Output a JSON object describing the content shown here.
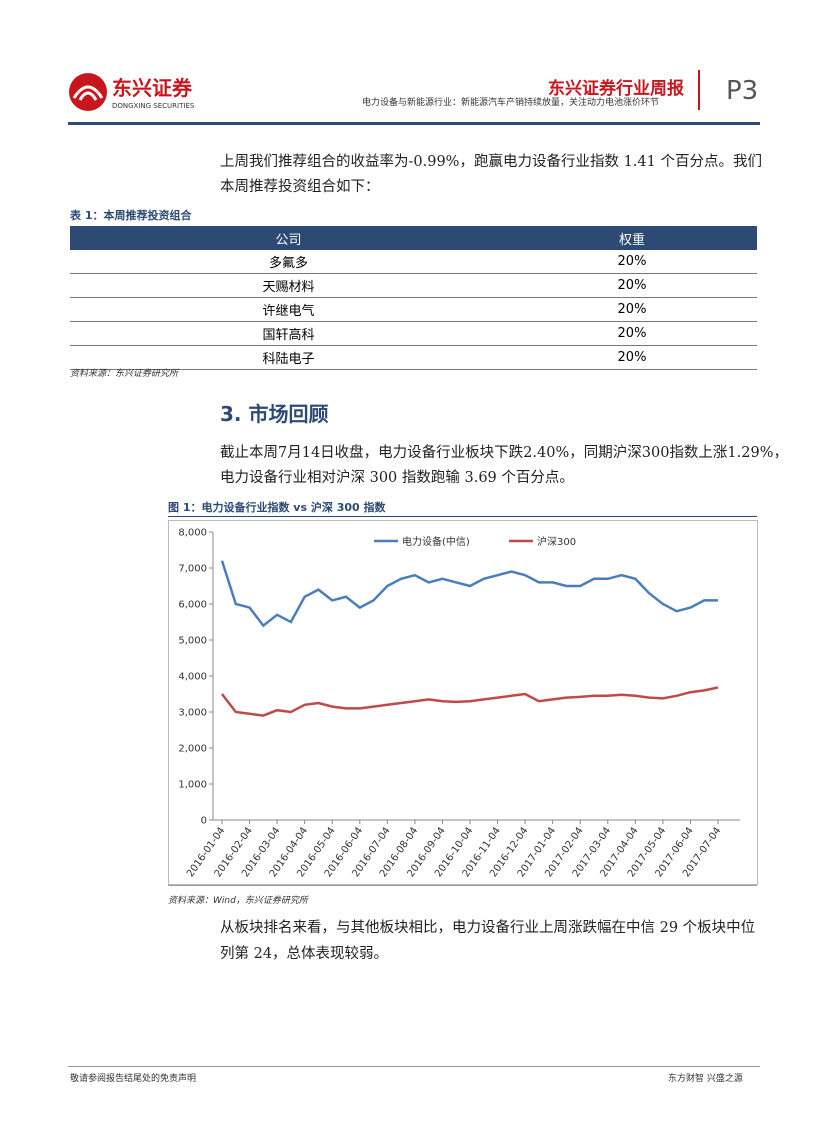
{
  "header": {
    "logo_cn": "东兴证券",
    "logo_en": "DONGXING SECURITIES",
    "title": "东兴证券行业周报",
    "subtitle": "电力设备与新能源行业：新能源汽车产销持续放量，关注动力电池涨价环节",
    "page": "P3"
  },
  "intro": [
    "上周我们推荐组合的收益率为-0.99%，跑赢电力设备行业指数 1.41 个百分点。我们",
    "本周推荐投资组合如下："
  ],
  "table": {
    "caption": "表 1：本周推荐投资组合",
    "header": [
      "公司",
      "权重"
    ],
    "rows": [
      [
        "多氟多",
        "20%"
      ],
      [
        "天赐材料",
        "20%"
      ],
      [
        "许继电气",
        "20%"
      ],
      [
        "国轩高科",
        "20%"
      ],
      [
        "科陆电子",
        "20%"
      ]
    ],
    "source": "资料来源：东兴证券研究所"
  },
  "section_title": "3. 市场回顾",
  "section_text": [
    "截止本周7月14日收盘，电力设备行业板块下跌2.40%，同期沪深300指数上涨1.29%，",
    "电力设备行业相对沪深 300 指数跑输 3.69 个百分点。"
  ],
  "figure_caption": "图 1：电力设备行业指数 vs 沪深 300 指数",
  "chart_data": {
    "type": "line",
    "categories": [
      "2016-01-04",
      null,
      "2016-02-04",
      null,
      "2016-03-04",
      null,
      "2016-04-04",
      null,
      "2016-05-04",
      null,
      "2016-06-04",
      null,
      "2016-07-04",
      null,
      "2016-08-04",
      null,
      "2016-09-04",
      null,
      "2016-10-04",
      null,
      "2016-11-04",
      null,
      "2016-12-04",
      null,
      "2017-01-04",
      null,
      "2017-02-04",
      null,
      "2017-03-04",
      null,
      "2017-04-04",
      null,
      "2017-05-04",
      null,
      "2017-06-04",
      null,
      "2017-07-04"
    ],
    "series": [
      {
        "name": "电力设备(中信)",
        "color": "#4a7ebb",
        "values": [
          7200,
          6000,
          5900,
          5400,
          5700,
          5500,
          6200,
          6400,
          6100,
          6200,
          5900,
          6100,
          6500,
          6700,
          6800,
          6600,
          6700,
          6600,
          6500,
          6700,
          6800,
          6900,
          6800,
          6600,
          6600,
          6500,
          6500,
          6700,
          6700,
          6800,
          6700,
          6300,
          6000,
          5800,
          5900,
          6100,
          6100
        ]
      },
      {
        "name": "沪深300",
        "color": "#be4b48",
        "values": [
          3500,
          3000,
          2950,
          2900,
          3050,
          3000,
          3200,
          3250,
          3150,
          3100,
          3100,
          3150,
          3200,
          3250,
          3300,
          3350,
          3300,
          3280,
          3300,
          3350,
          3400,
          3450,
          3500,
          3300,
          3350,
          3400,
          3420,
          3450,
          3450,
          3480,
          3450,
          3400,
          3380,
          3450,
          3550,
          3600,
          3680
        ]
      }
    ],
    "ylim": [
      0,
      8000
    ],
    "yticks": [
      0,
      {
        "value": 1000,
        "label": "1,000"
      },
      {
        "value": 2000,
        "label": "2,000"
      },
      {
        "value": 3000,
        "label": "3,000"
      },
      {
        "value": 4000,
        "label": "4,000"
      },
      {
        "value": 5000,
        "label": "5,000"
      },
      {
        "value": 6000,
        "label": "6,000"
      },
      {
        "value": 7000,
        "label": "7,000"
      },
      {
        "value": 8000,
        "label": "8,000"
      }
    ],
    "legend": "top"
  },
  "chart_source": "资料来源：Wind，东兴证券研究所",
  "closing": [
    "从板块排名来看，与其他板块相比，电力设备行业上周涨跌幅在中信 29 个板块中位",
    "列第 24，总体表现较弱。"
  ],
  "footer": {
    "left": "敬请参阅报告结尾处的免责声明",
    "right": "东方财智 兴盛之源"
  }
}
